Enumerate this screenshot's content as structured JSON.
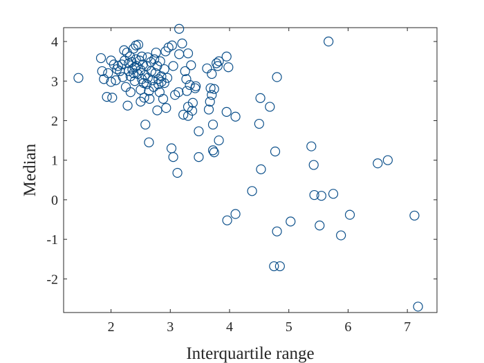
{
  "chart_data": {
    "type": "scatter",
    "title": "",
    "xlabel": "Interquartile range",
    "ylabel": "Median",
    "xlim": [
      1.2,
      7.5
    ],
    "ylim": [
      -2.85,
      4.35
    ],
    "xticks": [
      2,
      3,
      4,
      5,
      6,
      7
    ],
    "yticks": [
      -2,
      -1,
      0,
      1,
      2,
      3,
      4
    ],
    "xtick_labels": [
      "2",
      "3",
      "4",
      "5",
      "6",
      "7"
    ],
    "ytick_labels": [
      "-2",
      "-1",
      "0",
      "1",
      "2",
      "3",
      "4"
    ],
    "grid": false,
    "marker": "circle-open",
    "color": "#0b4f8a",
    "points": [
      [
        1.45,
        3.08
      ],
      [
        1.83,
        3.58
      ],
      [
        1.85,
        3.25
      ],
      [
        1.88,
        3.05
      ],
      [
        1.93,
        2.6
      ],
      [
        1.95,
        3.2
      ],
      [
        2.0,
        3.52
      ],
      [
        2.0,
        2.98
      ],
      [
        2.02,
        2.58
      ],
      [
        2.05,
        3.42
      ],
      [
        2.08,
        3.02
      ],
      [
        2.1,
        3.3
      ],
      [
        2.12,
        3.38
      ],
      [
        2.15,
        3.25
      ],
      [
        2.18,
        3.42
      ],
      [
        2.2,
        3.1
      ],
      [
        2.22,
        3.78
      ],
      [
        2.23,
        3.52
      ],
      [
        2.25,
        2.85
      ],
      [
        2.27,
        3.72
      ],
      [
        2.28,
        2.38
      ],
      [
        2.3,
        3.45
      ],
      [
        2.3,
        3.25
      ],
      [
        2.32,
        3.62
      ],
      [
        2.33,
        3.12
      ],
      [
        2.33,
        2.72
      ],
      [
        2.35,
        3.48
      ],
      [
        2.36,
        3.3
      ],
      [
        2.38,
        3.82
      ],
      [
        2.38,
        3.2
      ],
      [
        2.4,
        3.35
      ],
      [
        2.4,
        3.0
      ],
      [
        2.42,
        3.55
      ],
      [
        2.42,
        3.9
      ],
      [
        2.43,
        3.38
      ],
      [
        2.45,
        3.18
      ],
      [
        2.46,
        3.92
      ],
      [
        2.48,
        3.52
      ],
      [
        2.5,
        3.28
      ],
      [
        2.5,
        2.78
      ],
      [
        2.5,
        2.48
      ],
      [
        2.52,
        3.62
      ],
      [
        2.52,
        3.05
      ],
      [
        2.54,
        3.42
      ],
      [
        2.55,
        2.95
      ],
      [
        2.56,
        2.58
      ],
      [
        2.57,
        3.15
      ],
      [
        2.58,
        1.9
      ],
      [
        2.6,
        3.38
      ],
      [
        2.6,
        2.92
      ],
      [
        2.62,
        3.6
      ],
      [
        2.62,
        3.08
      ],
      [
        2.64,
        2.75
      ],
      [
        2.64,
        1.45
      ],
      [
        2.65,
        2.55
      ],
      [
        2.67,
        3.48
      ],
      [
        2.68,
        3.25
      ],
      [
        2.7,
        3.02
      ],
      [
        2.72,
        2.85
      ],
      [
        2.73,
        3.55
      ],
      [
        2.75,
        3.2
      ],
      [
        2.76,
        3.72
      ],
      [
        2.78,
        2.26
      ],
      [
        2.78,
        3.38
      ],
      [
        2.8,
        3.05
      ],
      [
        2.8,
        2.92
      ],
      [
        2.82,
        2.72
      ],
      [
        2.83,
        3.5
      ],
      [
        2.85,
        3.12
      ],
      [
        2.85,
        2.98
      ],
      [
        2.88,
        2.55
      ],
      [
        2.9,
        3.3
      ],
      [
        2.9,
        2.95
      ],
      [
        2.92,
        3.75
      ],
      [
        2.93,
        2.32
      ],
      [
        2.95,
        3.08
      ],
      [
        2.97,
        3.85
      ],
      [
        3.02,
        1.3
      ],
      [
        3.03,
        3.9
      ],
      [
        3.05,
        3.38
      ],
      [
        3.05,
        1.08
      ],
      [
        3.08,
        2.65
      ],
      [
        3.12,
        0.68
      ],
      [
        3.14,
        2.72
      ],
      [
        3.15,
        3.68
      ],
      [
        3.15,
        4.32
      ],
      [
        3.2,
        3.95
      ],
      [
        3.22,
        2.15
      ],
      [
        3.25,
        3.25
      ],
      [
        3.27,
        3.05
      ],
      [
        3.28,
        2.75
      ],
      [
        3.3,
        2.35
      ],
      [
        3.3,
        2.12
      ],
      [
        3.3,
        3.7
      ],
      [
        3.33,
        2.9
      ],
      [
        3.35,
        3.4
      ],
      [
        3.37,
        2.25
      ],
      [
        3.38,
        2.45
      ],
      [
        3.42,
        2.82
      ],
      [
        3.43,
        2.87
      ],
      [
        3.48,
        1.08
      ],
      [
        3.48,
        1.73
      ],
      [
        3.62,
        3.32
      ],
      [
        3.65,
        2.28
      ],
      [
        3.67,
        2.48
      ],
      [
        3.68,
        2.82
      ],
      [
        3.7,
        3.18
      ],
      [
        3.7,
        2.65
      ],
      [
        3.72,
        1.9
      ],
      [
        3.72,
        1.25
      ],
      [
        3.74,
        1.2
      ],
      [
        3.74,
        2.8
      ],
      [
        3.78,
        3.45
      ],
      [
        3.8,
        3.38
      ],
      [
        3.82,
        3.5
      ],
      [
        3.82,
        1.5
      ],
      [
        3.95,
        3.62
      ],
      [
        3.95,
        2.22
      ],
      [
        3.98,
        3.35
      ],
      [
        3.96,
        -0.52
      ],
      [
        4.1,
        2.1
      ],
      [
        4.1,
        -0.36
      ],
      [
        4.38,
        0.22
      ],
      [
        4.5,
        1.92
      ],
      [
        4.52,
        2.57
      ],
      [
        4.53,
        0.77
      ],
      [
        4.68,
        2.35
      ],
      [
        4.75,
        -1.68
      ],
      [
        4.77,
        1.22
      ],
      [
        4.8,
        3.1
      ],
      [
        4.8,
        -0.8
      ],
      [
        4.85,
        -1.68
      ],
      [
        5.03,
        -0.55
      ],
      [
        5.38,
        1.35
      ],
      [
        5.42,
        0.88
      ],
      [
        5.43,
        0.12
      ],
      [
        5.52,
        -0.65
      ],
      [
        5.55,
        0.1
      ],
      [
        5.67,
        4.0
      ],
      [
        5.75,
        0.15
      ],
      [
        5.88,
        -0.9
      ],
      [
        6.03,
        -0.38
      ],
      [
        6.5,
        0.92
      ],
      [
        6.67,
        1.0
      ],
      [
        7.12,
        -0.4
      ],
      [
        7.18,
        -2.7
      ]
    ]
  }
}
